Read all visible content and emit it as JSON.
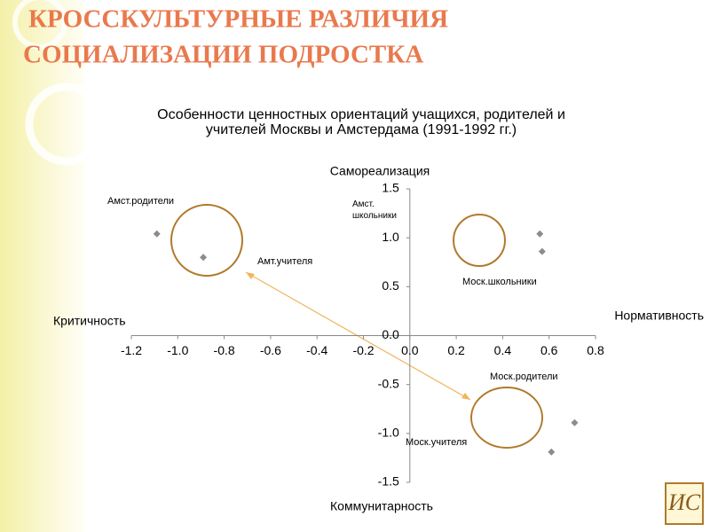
{
  "slide_title": [
    "КРОССКУЛЬТУРНЫЕ РАЗЛИЧИЯ",
    "СОЦИАЛИЗАЦИИ ПОДРОСТКА"
  ],
  "logo": "ИС",
  "chart_data": {
    "type": "scatter",
    "title": [
      "Особенности ценностных ориентаций учащихся, родителей и",
      "учителей Москвы и Амстердама (1991-1992 гг.)"
    ],
    "axis_labels": {
      "top": "Самореализация",
      "bottom": "Коммунитарность",
      "left": "Критичность",
      "right": "Нормативность"
    },
    "series": [
      {
        "color": "#8c8c8c",
        "x": [
          -1.09,
          -0.89,
          0.56,
          0.57,
          0.71,
          0.61
        ],
        "values": [
          1.04,
          0.8,
          1.04,
          0.86,
          -0.89,
          -1.19
        ]
      }
    ],
    "annotations": [
      "Амст.родители",
      "Амт.учителя",
      "Амст. школьники",
      "Моск.школьники",
      "Моск.родители",
      "Моск.учителя"
    ],
    "xlim": [
      -1.2,
      0.8
    ],
    "xticks": [
      -1.2,
      {
        "value": -1,
        "label": "-1.0"
      },
      -0.8,
      -0.6,
      -0.4,
      -0.2,
      {
        "value": 0,
        "label": "0.0"
      },
      0.2,
      0.4,
      0.6,
      0.8
    ],
    "ylim": [
      -1.5,
      1.5
    ],
    "yticks": [
      1.5,
      {
        "value": 1,
        "label": "1.0"
      },
      0.5,
      {
        "value": 0,
        "label": "0.0"
      },
      -0.5,
      {
        "value": -1,
        "label": "-1.0"
      },
      -1.5
    ]
  }
}
